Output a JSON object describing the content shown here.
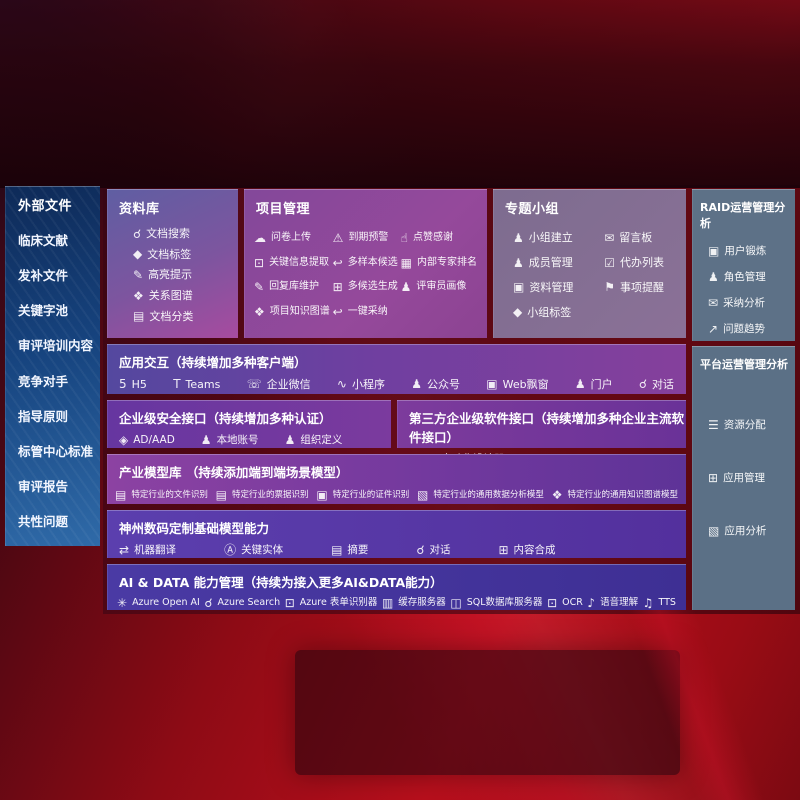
{
  "colors": {
    "bg_red_bright": "#b80f1c",
    "bg_red_dark": "#2a040b",
    "sidebar_blue_top": "#0e2a58",
    "sidebar_blue_bottom": "#2f6aa8",
    "panel_magenta": "#a74b9f",
    "panel_purple": "#7b3a9e",
    "panel_indigo": "#3e2f94",
    "panel_gray_blue": "#5d7187",
    "panel_mauve": "#7d6c8f"
  },
  "left_sidebar": {
    "title": "外部文件",
    "items": [
      "临床文献",
      "发补文件",
      "关键字池",
      "审评培训内容",
      "竞争对手",
      "指导原则",
      "标管中心标准",
      "审评报告",
      "共性问题"
    ]
  },
  "top_boxes": [
    {
      "title": "资料库",
      "items": [
        {
          "icon": "doc-search",
          "label": "文档搜索"
        },
        {
          "icon": "doc-tag",
          "label": "文档标签"
        },
        {
          "icon": "highlight",
          "label": "高亮提示"
        },
        {
          "icon": "relation-graph",
          "label": "关系图谱"
        },
        {
          "icon": "doc-category",
          "label": "文档分类"
        }
      ]
    },
    {
      "title": "项目管理",
      "items": [
        {
          "icon": "cloud-upload",
          "label": "问卷上传"
        },
        {
          "icon": "due-alarm",
          "label": "到期预警"
        },
        {
          "icon": "thumbs-up",
          "label": "点赞感谢"
        },
        {
          "icon": "key-info-extract",
          "label": "关键信息提取"
        },
        {
          "icon": "multi-sample",
          "label": "多样本候选"
        },
        {
          "icon": "expert-ranking",
          "label": "内部专家排名"
        },
        {
          "icon": "reply-maintain",
          "label": "回复库维护"
        },
        {
          "icon": "multi-generate",
          "label": "多候选生成"
        },
        {
          "icon": "reviewer-portrait",
          "label": "评审员画像"
        },
        {
          "icon": "project-knowledge-graph",
          "label": "项目知识图谱"
        },
        {
          "icon": "one-click-adopt",
          "label": "一键采纳"
        }
      ]
    },
    {
      "title": "专题小组",
      "items": [
        {
          "icon": "group-create",
          "label": "小组建立"
        },
        {
          "icon": "message-board",
          "label": "留言板"
        },
        {
          "icon": "member-manage",
          "label": "成员管理"
        },
        {
          "icon": "todo-list",
          "label": "代办列表"
        },
        {
          "icon": "material-manage",
          "label": "资料管理"
        },
        {
          "icon": "reminder-bell",
          "label": "事项提醒"
        },
        {
          "icon": "group-tag",
          "label": "小组标签"
        }
      ]
    }
  ],
  "right_boxes": [
    {
      "title": "RAID运营管理分析",
      "items": [
        {
          "icon": "user-card",
          "label": "用户锻炼"
        },
        {
          "icon": "role-manage",
          "label": "角色管理"
        },
        {
          "icon": "adoption-analysis",
          "label": "采纳分析"
        },
        {
          "icon": "issue-trend",
          "label": "问题趋势"
        }
      ]
    },
    {
      "title": "平台运营管理分析",
      "items": [
        {
          "icon": "resource-allocation",
          "label": "资源分配"
        },
        {
          "icon": "app-manage",
          "label": "应用管理"
        },
        {
          "icon": "app-analysis",
          "label": "应用分析"
        }
      ]
    }
  ],
  "rows": [
    {
      "title": "应用交互（持续增加多种客户端）",
      "items": [
        {
          "icon": "h5",
          "label": "H5"
        },
        {
          "icon": "teams",
          "label": "Teams"
        },
        {
          "icon": "wechat-work",
          "label": "企业微信"
        },
        {
          "icon": "mini-program",
          "label": "小程序"
        },
        {
          "icon": "official-account",
          "label": "公众号"
        },
        {
          "icon": "web-popup",
          "label": "Web飘窗"
        },
        {
          "icon": "portal",
          "label": "门户"
        },
        {
          "icon": "chat",
          "label": "对话"
        }
      ]
    },
    {
      "title": "企业级安全接口（持续增加多种认证）",
      "items": [
        {
          "icon": "ad-aad",
          "label": "AD/AAD"
        },
        {
          "icon": "local-account",
          "label": "本地账号"
        },
        {
          "icon": "org-define",
          "label": "组织定义"
        }
      ]
    },
    {
      "title": "第三方企业级软件接口（持续增加多种企业主流软件接口）",
      "items": [
        {
          "icon": "api-designer",
          "label": "API自动化设计器"
        }
      ]
    },
    {
      "title": "产业模型库 （持续添加端到端场景模型）",
      "items": [
        {
          "icon": "file-recognition",
          "label": "特定行业的文件识别"
        },
        {
          "icon": "invoice-recognition",
          "label": "特定行业的票据识别"
        },
        {
          "icon": "cert-recognition",
          "label": "特定行业的证件识别"
        },
        {
          "icon": "data-analysis-model",
          "label": "特定行业的通用数据分析模型"
        },
        {
          "icon": "knowledge-graph-model",
          "label": "特定行业的通用知识图谱模型"
        }
      ]
    },
    {
      "title": "神州数码定制基础模型能力",
      "items": [
        {
          "icon": "machine-translation",
          "label": "机器翻译"
        },
        {
          "icon": "key-entity",
          "label": "关键实体"
        },
        {
          "icon": "summary",
          "label": "摘要"
        },
        {
          "icon": "chat",
          "label": "对话"
        },
        {
          "icon": "content-compose",
          "label": "内容合成"
        }
      ]
    },
    {
      "title": "AI & DATA 能力管理（持续为接入更多AI&DATA能力）",
      "items": [
        {
          "icon": "openai",
          "label": "Azure Open AI"
        },
        {
          "icon": "azure-search",
          "label": "Azure Search"
        },
        {
          "icon": "form-recognizer",
          "label": "Azure 表单识别器"
        },
        {
          "icon": "cache-server",
          "label": "缓存服务器"
        },
        {
          "icon": "sql-server",
          "label": "SQL数据库服务器"
        },
        {
          "icon": "ocr",
          "label": "OCR"
        },
        {
          "icon": "speech-understand",
          "label": "语音理解"
        },
        {
          "icon": "tts",
          "label": "TTS"
        }
      ]
    }
  ],
  "icons": {
    "doc-search": "☌",
    "doc-tag": "◆",
    "highlight": "✎",
    "relation-graph": "❖",
    "doc-category": "▤",
    "cloud-upload": "☁",
    "due-alarm": "⚠",
    "thumbs-up": "☝",
    "key-info-extract": "⊡",
    "multi-sample": "↩",
    "expert-ranking": "▦",
    "reply-maintain": "✎",
    "multi-generate": "⊞",
    "reviewer-portrait": "♟",
    "project-knowledge-graph": "❖",
    "one-click-adopt": "↩",
    "group-create": "♟",
    "message-board": "✉",
    "member-manage": "♟",
    "todo-list": "☑",
    "material-manage": "▣",
    "reminder-bell": "⚑",
    "group-tag": "◆",
    "user-card": "▣",
    "role-manage": "♟",
    "adoption-analysis": "✉",
    "issue-trend": "↗",
    "resource-allocation": "☰",
    "app-manage": "⊞",
    "app-analysis": "▧",
    "h5": "5",
    "teams": "T",
    "wechat-work": "☏",
    "mini-program": "∿",
    "official-account": "♟",
    "web-popup": "▣",
    "portal": "♟",
    "chat": "☌",
    "ad-aad": "◈",
    "local-account": "♟",
    "org-define": "♟",
    "api-designer": "⚙",
    "file-recognition": "▤",
    "invoice-recognition": "▤",
    "cert-recognition": "▣",
    "data-analysis-model": "▧",
    "knowledge-graph-model": "❖",
    "machine-translation": "⇄",
    "key-entity": "Ⓐ",
    "summary": "▤",
    "content-compose": "⊞",
    "openai": "✳",
    "azure-search": "☌",
    "form-recognizer": "⊡",
    "cache-server": "▥",
    "sql-server": "◫",
    "ocr": "⊡",
    "speech-understand": "♪",
    "tts": "♫"
  }
}
